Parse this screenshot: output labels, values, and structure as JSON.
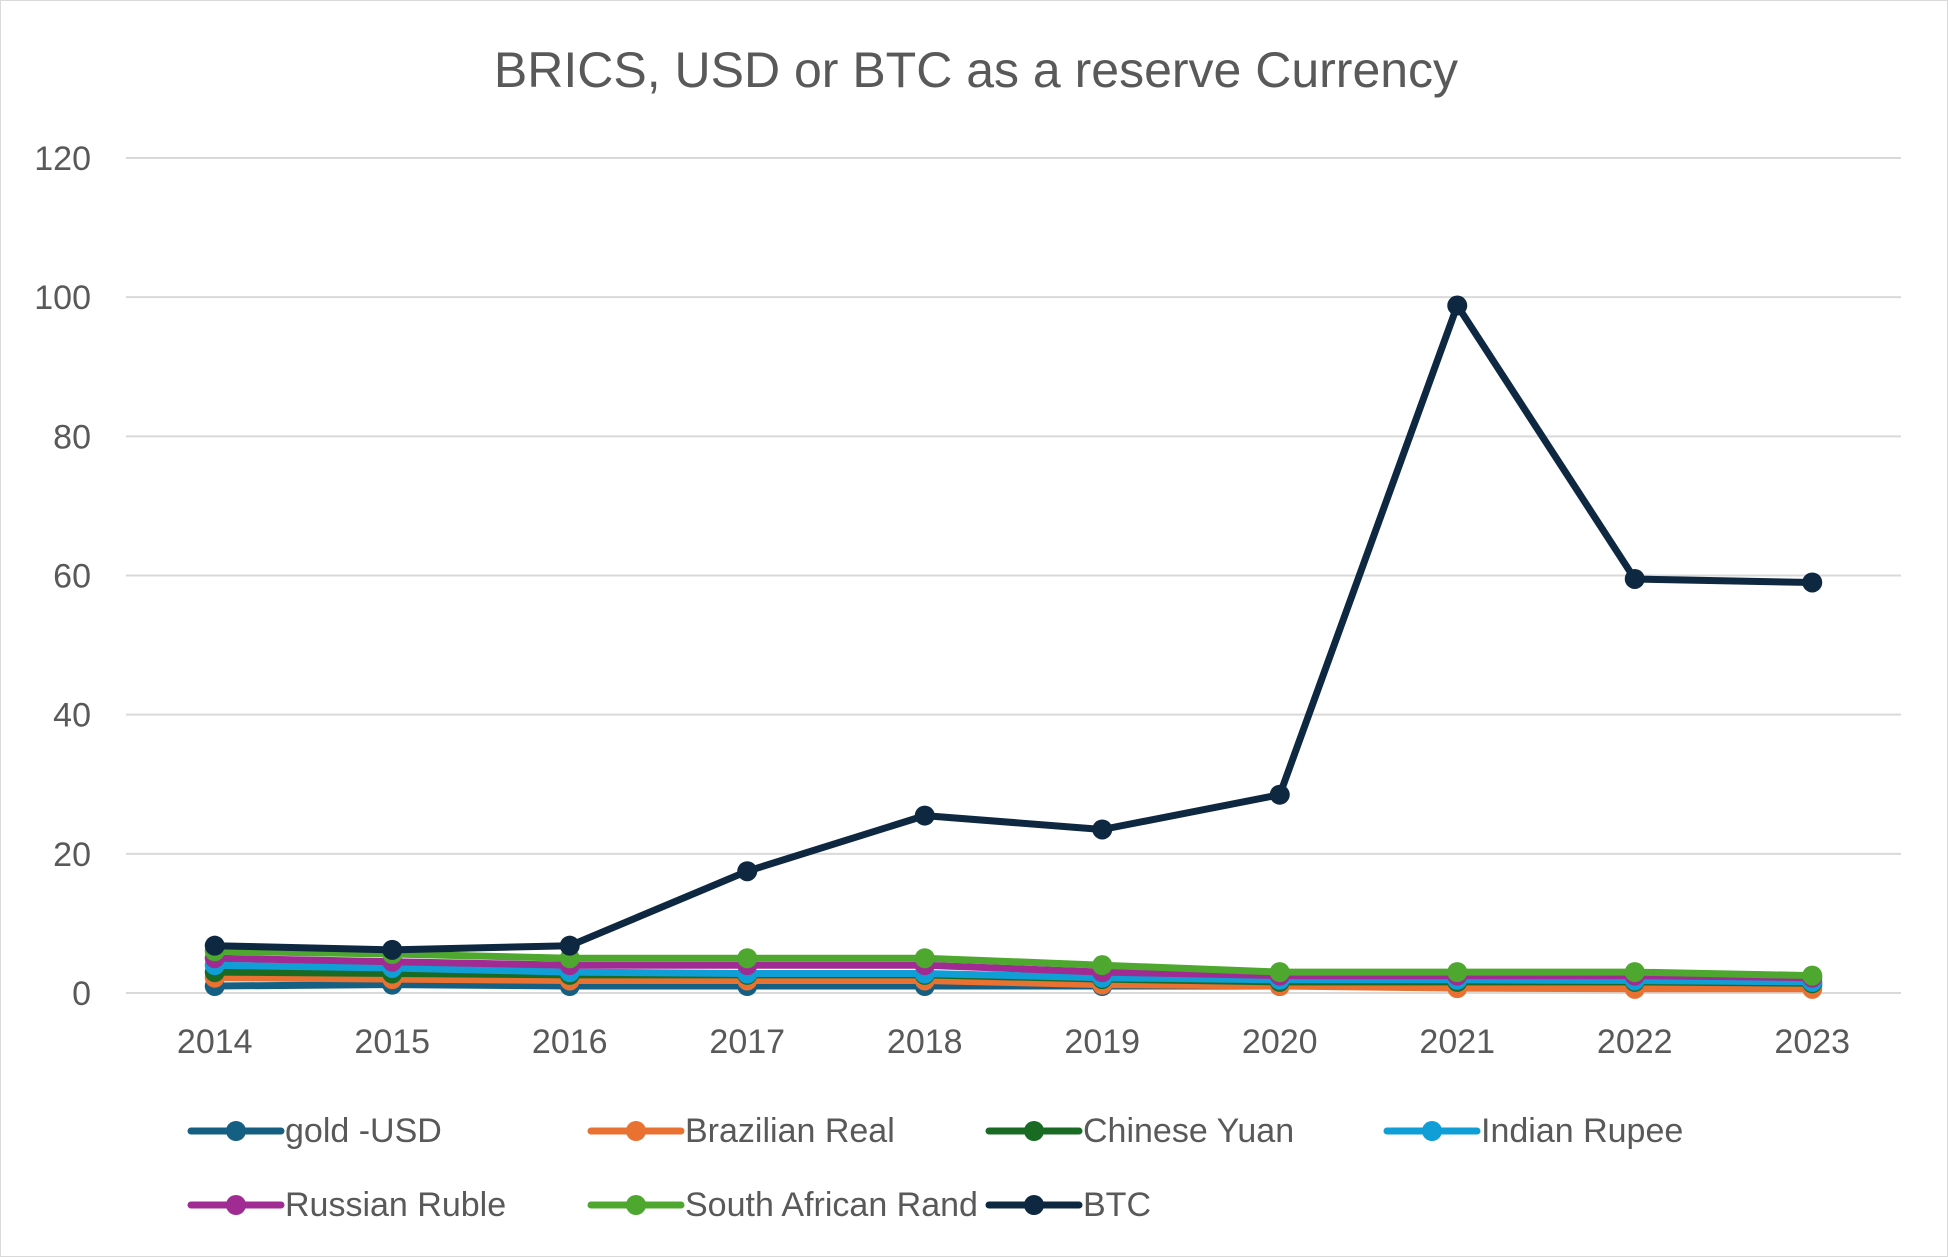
{
  "chart_data": {
    "type": "line",
    "title": "BRICS, USD or BTC as a reserve Currency",
    "xlabel": "",
    "ylabel": "",
    "categories": [
      "2014",
      "2015",
      "2016",
      "2017",
      "2018",
      "2019",
      "2020",
      "2021",
      "2022",
      "2023"
    ],
    "ylim": [
      0,
      120
    ],
    "yticks": [
      0,
      20,
      40,
      60,
      80,
      100,
      120
    ],
    "grid": true,
    "legend_position": "bottom",
    "series": [
      {
        "name": "gold -USD",
        "color": "#156082",
        "values": [
          1,
          1.2,
          1,
          1,
          1,
          1,
          1,
          1.2,
          1,
          1.1
        ]
      },
      {
        "name": "Brazilian Real",
        "color": "#e97132",
        "values": [
          2.2,
          2,
          1.8,
          1.8,
          1.8,
          1.2,
          1,
          0.7,
          0.6,
          0.6
        ]
      },
      {
        "name": "Chinese Yuan",
        "color": "#196b24",
        "values": [
          3,
          2.8,
          2.6,
          2.6,
          2.6,
          2,
          1.6,
          1.6,
          1.6,
          1.4
        ]
      },
      {
        "name": "Indian Rupee",
        "color": "#0f9ed5",
        "values": [
          4,
          3.6,
          3,
          2.8,
          2.8,
          2.2,
          1.9,
          1.9,
          1.8,
          1.6
        ]
      },
      {
        "name": "Russian Ruble",
        "color": "#a02b93",
        "values": [
          5,
          4.5,
          4,
          4,
          4,
          3,
          2.5,
          2.5,
          2.5,
          2.2
        ]
      },
      {
        "name": "South African Rand",
        "color": "#4ea72e",
        "values": [
          6,
          5.6,
          5,
          5,
          5,
          4,
          3,
          3,
          3,
          2.5
        ]
      },
      {
        "name": "BTC",
        "color": "#0e2841",
        "values": [
          6.8,
          6.2,
          6.8,
          17.5,
          25.5,
          23.5,
          28.5,
          98.8,
          59.5,
          59
        ]
      }
    ]
  }
}
